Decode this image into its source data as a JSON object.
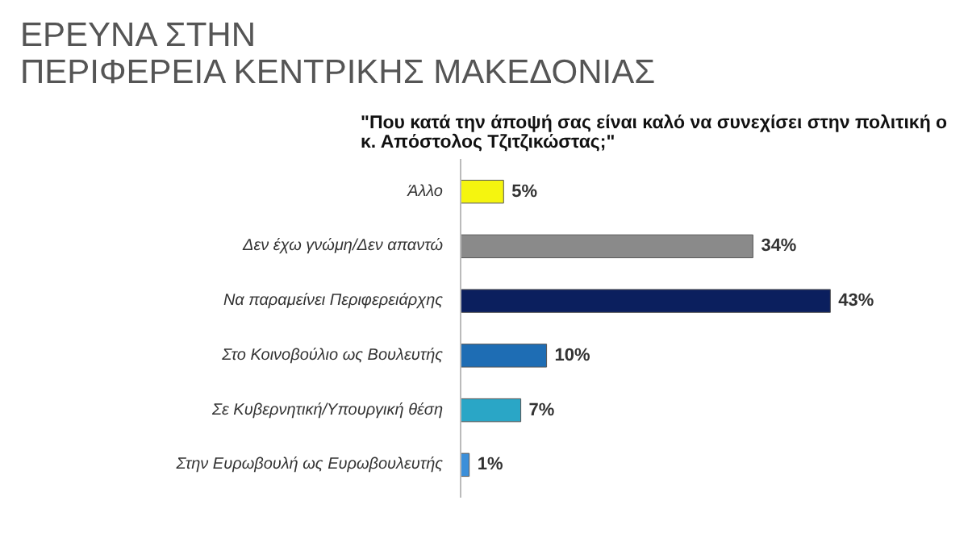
{
  "chart_data": {
    "type": "bar",
    "orientation": "horizontal",
    "title": "ΕΡΕΥΝΑ ΣΤΗΝ\nΠΕΡΙΦΕΡΕΙΑ ΚΕΝΤΡΙΚΗΣ ΜΑΚΕΔΟΝΙΑΣ",
    "subtitle": "\"Που κατά την άποψή σας είναι καλό να συνεχίσει στην πολιτική ο\nκ. Απόστολος Τζιτζικώστας;\"",
    "categories": [
      "Άλλο",
      "Δεν έχω γνώμη/Δεν απαντώ",
      "Να παραμείνει Περιφερειάρχης",
      "Στο Κοινοβούλιο ως Βουλευτής",
      "Σε Κυβερνητική/Υπουργική θέση",
      "Στην Ευρωβουλή ως Ευρωβουλευτής"
    ],
    "values": [
      5,
      34,
      43,
      10,
      7,
      1
    ],
    "value_labels": [
      "5%",
      "34%",
      "43%",
      "10%",
      "7%",
      "1%"
    ],
    "colors": [
      "#f5f50f",
      "#8a8a8a",
      "#0b1f5e",
      "#1e6db4",
      "#2aa6c6",
      "#3b8fd9"
    ],
    "grid": false
  }
}
